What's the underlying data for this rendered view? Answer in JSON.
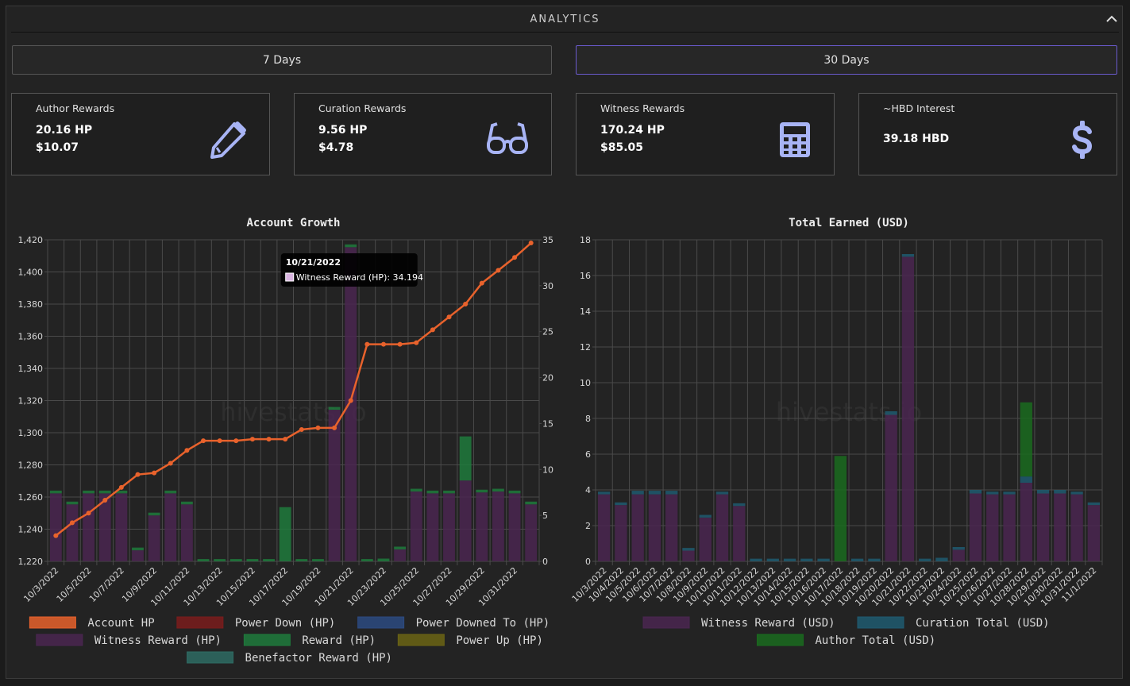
{
  "header": {
    "title": "ANALYTICS"
  },
  "buttons": [
    "7 Days",
    "30 Days"
  ],
  "cards": [
    {
      "title": "Author Rewards",
      "lines": [
        "20.16 HP",
        "$10.07"
      ]
    },
    {
      "title": "Curation Rewards",
      "lines": [
        "9.56 HP",
        "$4.78"
      ]
    },
    {
      "title": "Witness Rewards",
      "lines": [
        "170.24 HP",
        "$85.05"
      ]
    },
    {
      "title": "~HBD Interest",
      "lines": [
        "39.18 HBD"
      ]
    }
  ],
  "chart_data": [
    {
      "type": "bar",
      "title": "Account Growth",
      "watermark": "hivestats.io",
      "stacked": true,
      "grid": true,
      "categories": [
        "10/3/2022",
        null,
        "10/5/2022",
        null,
        "10/7/2022",
        null,
        "10/9/2022",
        null,
        "10/11/2022",
        null,
        "10/13/2022",
        null,
        "10/15/2022",
        null,
        "10/17/2022",
        null,
        "10/19/2022",
        null,
        "10/21/2022",
        null,
        "10/23/2022",
        null,
        "10/25/2022",
        null,
        "10/27/2022",
        null,
        "10/29/2022",
        null,
        "10/31/2022",
        null
      ],
      "ylim": [
        1220,
        1420
      ],
      "yticks": [
        {
          "value": 1220,
          "label": "1,220"
        },
        {
          "value": 1240,
          "label": "1,240"
        },
        {
          "value": 1260,
          "label": "1,260"
        },
        {
          "value": 1280,
          "label": "1,280"
        },
        {
          "value": 1300,
          "label": "1,300"
        },
        {
          "value": 1320,
          "label": "1,320"
        },
        {
          "value": 1340,
          "label": "1,340"
        },
        {
          "value": 1360,
          "label": "1,360"
        },
        {
          "value": 1380,
          "label": "1,380"
        },
        {
          "value": 1400,
          "label": "1,400"
        },
        {
          "value": 1420,
          "label": "1,420"
        }
      ],
      "y2lim": [
        0,
        35
      ],
      "y2ticks": [
        0,
        5,
        10,
        15,
        20,
        25,
        30,
        35
      ],
      "series": [
        {
          "name": "Account HP",
          "color": "#e8622c",
          "type": "line",
          "values": [
            1236,
            1244,
            1250,
            1258,
            1266,
            1274,
            1275,
            1281,
            1289,
            1295,
            1295,
            1295,
            1296,
            1296,
            1296,
            1302,
            1303,
            1303,
            1320,
            1355,
            1355,
            1355,
            1356,
            1364,
            1372,
            1380,
            1393,
            1401,
            1409,
            1418
          ]
        },
        {
          "name": "Power Down (HP)",
          "color": "#7a1c1c",
          "axis": "y2",
          "values": [
            0,
            0,
            0,
            0,
            0,
            0,
            0,
            0,
            0,
            0,
            0,
            0,
            0,
            0,
            0,
            0,
            0,
            0,
            0,
            0,
            0,
            0,
            0,
            0,
            0,
            0,
            0,
            0,
            0,
            0
          ]
        },
        {
          "name": "Power Downed To (HP)",
          "color": "#2c4a80",
          "axis": "y2",
          "values": [
            0,
            0,
            0,
            0,
            0,
            0,
            0,
            0,
            0,
            0,
            0,
            0,
            0,
            0,
            0,
            0,
            0,
            0,
            0,
            0,
            0,
            0,
            0,
            0,
            0,
            0,
            0,
            0,
            0,
            0
          ]
        },
        {
          "name": "Witness Reward (HP)",
          "color": "#4a2650",
          "axis": "y2",
          "values": [
            7.4,
            6.2,
            7.4,
            7.4,
            7.4,
            1.2,
            5.0,
            7.4,
            6.2,
            0,
            0,
            0,
            0,
            0,
            0,
            0,
            0,
            16.5,
            34.194,
            0,
            0,
            1.3,
            7.6,
            7.4,
            7.4,
            8.8,
            7.5,
            7.6,
            7.4,
            6.2
          ]
        },
        {
          "name": "Reward (HP)",
          "color": "#1f7a3c",
          "axis": "y2",
          "values": [
            0.3,
            0.3,
            0.3,
            0.3,
            0.3,
            0.3,
            0.3,
            0.3,
            0.3,
            0.25,
            0.25,
            0.25,
            0.25,
            0.25,
            5.9,
            0.25,
            0.25,
            0.3,
            0.3,
            0.25,
            0.3,
            0.3,
            0.3,
            0.3,
            0.3,
            4.8,
            0.3,
            0.3,
            0.3,
            0.3
          ]
        },
        {
          "name": "Power Up (HP)",
          "color": "#6b6414",
          "axis": "y2",
          "values": [
            0,
            0,
            0,
            0,
            0,
            0,
            0,
            0,
            0,
            0,
            0,
            0,
            0,
            0,
            0,
            0,
            0,
            0,
            0,
            0,
            0,
            0,
            0,
            0,
            0,
            0,
            0,
            0,
            0,
            0
          ]
        },
        {
          "name": "Benefactor Reward (HP)",
          "color": "#2e6b63",
          "axis": "y2",
          "values": [
            0,
            0,
            0,
            0,
            0,
            0,
            0,
            0,
            0,
            0,
            0,
            0,
            0,
            0,
            0,
            0,
            0,
            0,
            0,
            0,
            0,
            0,
            0,
            0,
            0,
            0,
            0,
            0,
            0,
            0
          ]
        }
      ],
      "tooltip": {
        "title": "10/21/2022",
        "text": "Witness Reward (HP): 34.194",
        "color": "#d8b4e0"
      }
    },
    {
      "type": "bar",
      "title": "Total Earned (USD)",
      "watermark": "hivestats.io",
      "stacked": true,
      "grid": true,
      "categories": [
        "10/3/2022",
        "10/4/2022",
        "10/5/2022",
        "10/6/2022",
        "10/7/2022",
        "10/8/2022",
        "10/9/2022",
        "10/10/2022",
        "10/11/2022",
        "10/12/2022",
        "10/13/2022",
        "10/14/2022",
        "10/15/2022",
        "10/16/2022",
        "10/17/2022",
        "10/18/2022",
        "10/19/2022",
        "10/20/2022",
        "10/21/2022",
        "10/22/2022",
        "10/23/2022",
        "10/24/2022",
        "10/25/2022",
        "10/26/2022",
        "10/27/2022",
        "10/28/2022",
        "10/29/2022",
        "10/30/2022",
        "10/31/2022",
        "11/1/2022"
      ],
      "ylim": [
        0,
        18
      ],
      "yticks": [
        0,
        2,
        4,
        6,
        8,
        10,
        12,
        14,
        16,
        18
      ],
      "series": [
        {
          "name": "Witness Reward (USD)",
          "color": "#4a2650",
          "values": [
            3.75,
            3.15,
            3.75,
            3.75,
            3.75,
            0.6,
            2.45,
            3.75,
            3.1,
            0,
            0,
            0,
            0,
            0,
            0,
            0,
            0,
            8.2,
            17.05,
            0,
            0,
            0.65,
            3.8,
            3.75,
            3.75,
            4.4,
            3.8,
            3.8,
            3.75,
            3.15
          ]
        },
        {
          "name": "Curation Total (USD)",
          "color": "#1f5a70",
          "values": [
            0.15,
            0.15,
            0.2,
            0.2,
            0.2,
            0.15,
            0.15,
            0.15,
            0.15,
            0.15,
            0.15,
            0.15,
            0.15,
            0.15,
            0,
            0.15,
            0.15,
            0.2,
            0.15,
            0.15,
            0.2,
            0.15,
            0.2,
            0.15,
            0.15,
            0.35,
            0.2,
            0.2,
            0.15,
            0.15
          ]
        },
        {
          "name": "Author Total (USD)",
          "color": "#1a6b1f",
          "values": [
            0,
            0,
            0,
            0,
            0,
            0,
            0,
            0,
            0,
            0,
            0,
            0,
            0,
            0,
            5.9,
            0,
            0,
            0,
            0,
            0,
            0,
            0,
            0,
            0,
            0,
            4.15,
            0,
            0,
            0,
            0
          ]
        }
      ]
    }
  ]
}
